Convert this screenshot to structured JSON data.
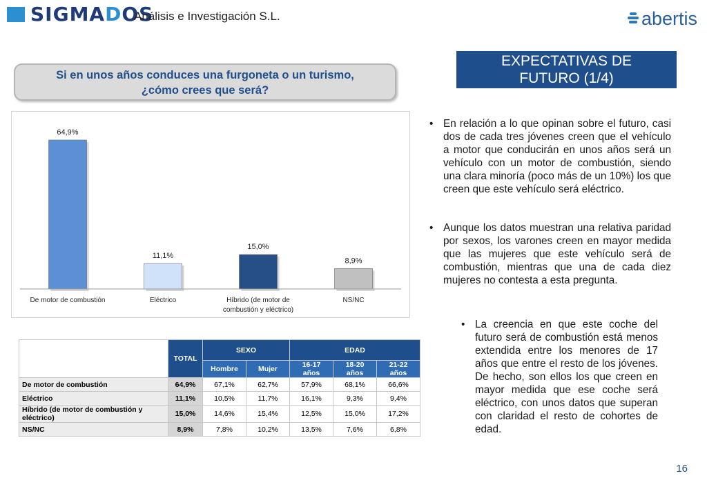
{
  "header": {
    "logo_main": "SIGMA",
    "logo_accent": "D",
    "logo_end": "OS",
    "logo_sub": "Análisis e Investigación S.L.",
    "brand_name": "abertis"
  },
  "section_title": {
    "line1": "EXPECTATIVAS DE",
    "line2": "FUTURO (1/4)"
  },
  "question": {
    "line1": "Si en unos años conduces una furgoneta o un turismo,",
    "line2": "¿cómo crees que será?"
  },
  "chart_data": {
    "type": "bar",
    "categories": [
      "De motor de combustión",
      "Eléctrico",
      "Híbrido (de motor de combustión y eléctrico)",
      "NS/NC"
    ],
    "category_lines": [
      [
        "De motor de combustión"
      ],
      [
        "Eléctrico"
      ],
      [
        "Híbrido (de motor de",
        "combustión y eléctrico)"
      ],
      [
        "NS/NC"
      ]
    ],
    "values": [
      64.9,
      11.1,
      15.0,
      8.9
    ],
    "value_labels": [
      "64,9%",
      "11,1%",
      "15,0%",
      "8,9%"
    ],
    "colors": [
      "#5b8fd6",
      "#cfe2fa",
      "#254f86",
      "#c0c0c0"
    ],
    "ylim": [
      0,
      70
    ],
    "grid": false,
    "title": "",
    "xlabel": "",
    "ylabel": ""
  },
  "table": {
    "total_header": "TOTAL",
    "group_headers": [
      "SEXO",
      "EDAD"
    ],
    "sub_headers": [
      "Hombre",
      "Mujer",
      "16-17 años",
      "18-20 años",
      "21-22 años"
    ],
    "rows": [
      {
        "label": "De motor de combustión",
        "total": "64,9%",
        "values": [
          "67,1%",
          "62,7%",
          "57,9%",
          "68,1%",
          "66,6%"
        ]
      },
      {
        "label": "Eléctrico",
        "total": "11,1%",
        "values": [
          "10,5%",
          "11,7%",
          "16,1%",
          "9,3%",
          "9,4%"
        ]
      },
      {
        "label": "Híbrido (de motor de combustión y eléctrico)",
        "total": "15,0%",
        "values": [
          "14,6%",
          "15,4%",
          "12,5%",
          "15,0%",
          "17,2%"
        ]
      },
      {
        "label": "NS/NC",
        "total": "8,9%",
        "values": [
          "7,8%",
          "10,2%",
          "13,5%",
          "7,6%",
          "6,8%"
        ]
      }
    ]
  },
  "bullets": [
    "En relación a lo que opinan sobre el futuro, casi dos de cada tres jóvenes creen que el vehículo a motor que conducirán en unos años será un vehículo con un motor de combustión, siendo una clara minoría (poco más de un 10%) los que creen que este vehículo será eléctrico.",
    "Aunque los datos muestran una relativa paridad por sexos, los varones creen en mayor medida que las mujeres que este vehículo será de combustión, mientras que una de cada diez mujeres no contesta a esta pregunta.",
    "La creencia en que este coche del futuro será de combustión está menos extendida entre los menores de 17 años que entre el resto de los jóvenes.  De hecho, son ellos los que creen en mayor medida que ese coche será eléctrico, con unos datos que superan con claridad el resto de cohortes de edad."
  ],
  "bullet_symbol": "•",
  "page_number": "16"
}
